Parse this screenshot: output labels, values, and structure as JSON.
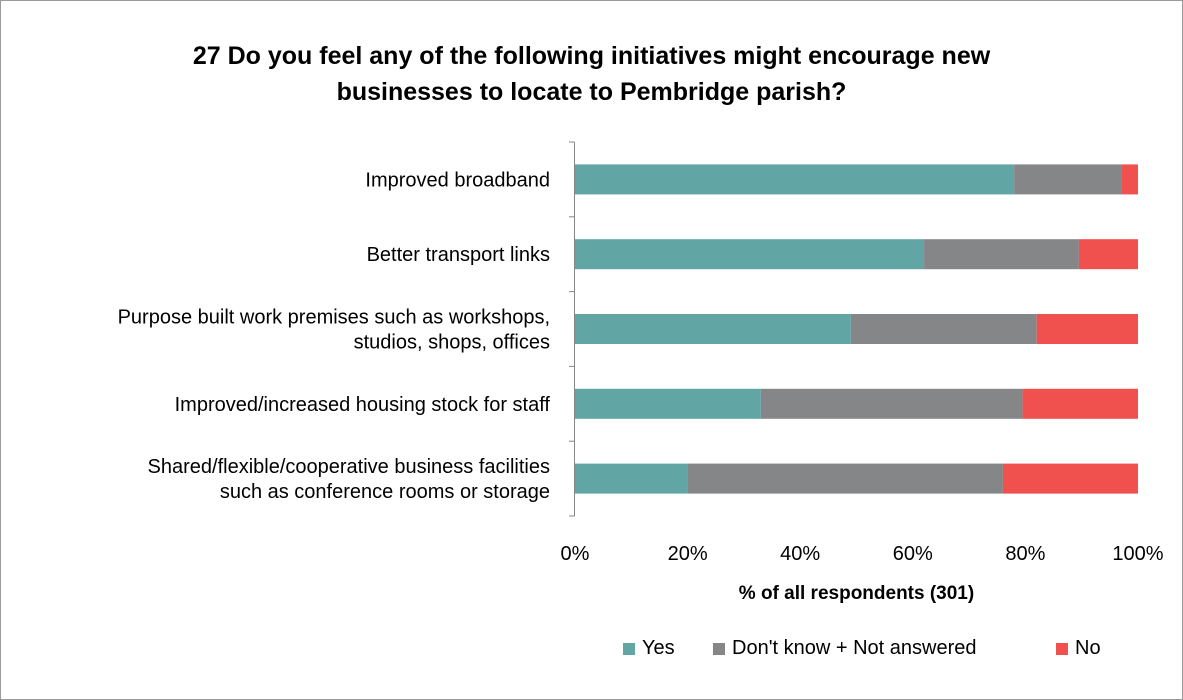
{
  "chart_data": {
    "type": "bar",
    "orientation": "horizontal",
    "stacked": "percent",
    "title": "27 Do you feel any of the following initiatives might encourage new businesses to locate to Pembridge parish?",
    "title_lines": [
      "27 Do you feel any of the following initiatives might encourage new",
      "businesses to locate to Pembridge parish?"
    ],
    "xlabel": "% of all respondents (301)",
    "ylabel": "",
    "xlim": [
      0,
      100
    ],
    "x_ticks": [
      "0%",
      "20%",
      "40%",
      "60%",
      "80%",
      "100%"
    ],
    "categories": [
      [
        "Improved broadband"
      ],
      [
        "Better transport links"
      ],
      [
        "Purpose built work premises such as workshops,",
        "studios, shops, offices"
      ],
      [
        "Improved/increased housing stock for staff"
      ],
      [
        "Shared/flexible/cooperative business facilities",
        "such as conference rooms or storage"
      ]
    ],
    "series": [
      {
        "name": "Yes",
        "color": "#62a5a5",
        "values": [
          78,
          62,
          49,
          33,
          20
        ]
      },
      {
        "name": "Don't know + Not answered",
        "color": "#858688",
        "values": [
          19,
          27.5,
          33,
          46.5,
          56
        ]
      },
      {
        "name": "No",
        "color": "#f0504e",
        "values": [
          3,
          10.5,
          18,
          20.5,
          24
        ]
      }
    ],
    "legend_position": "bottom",
    "grid": false
  }
}
